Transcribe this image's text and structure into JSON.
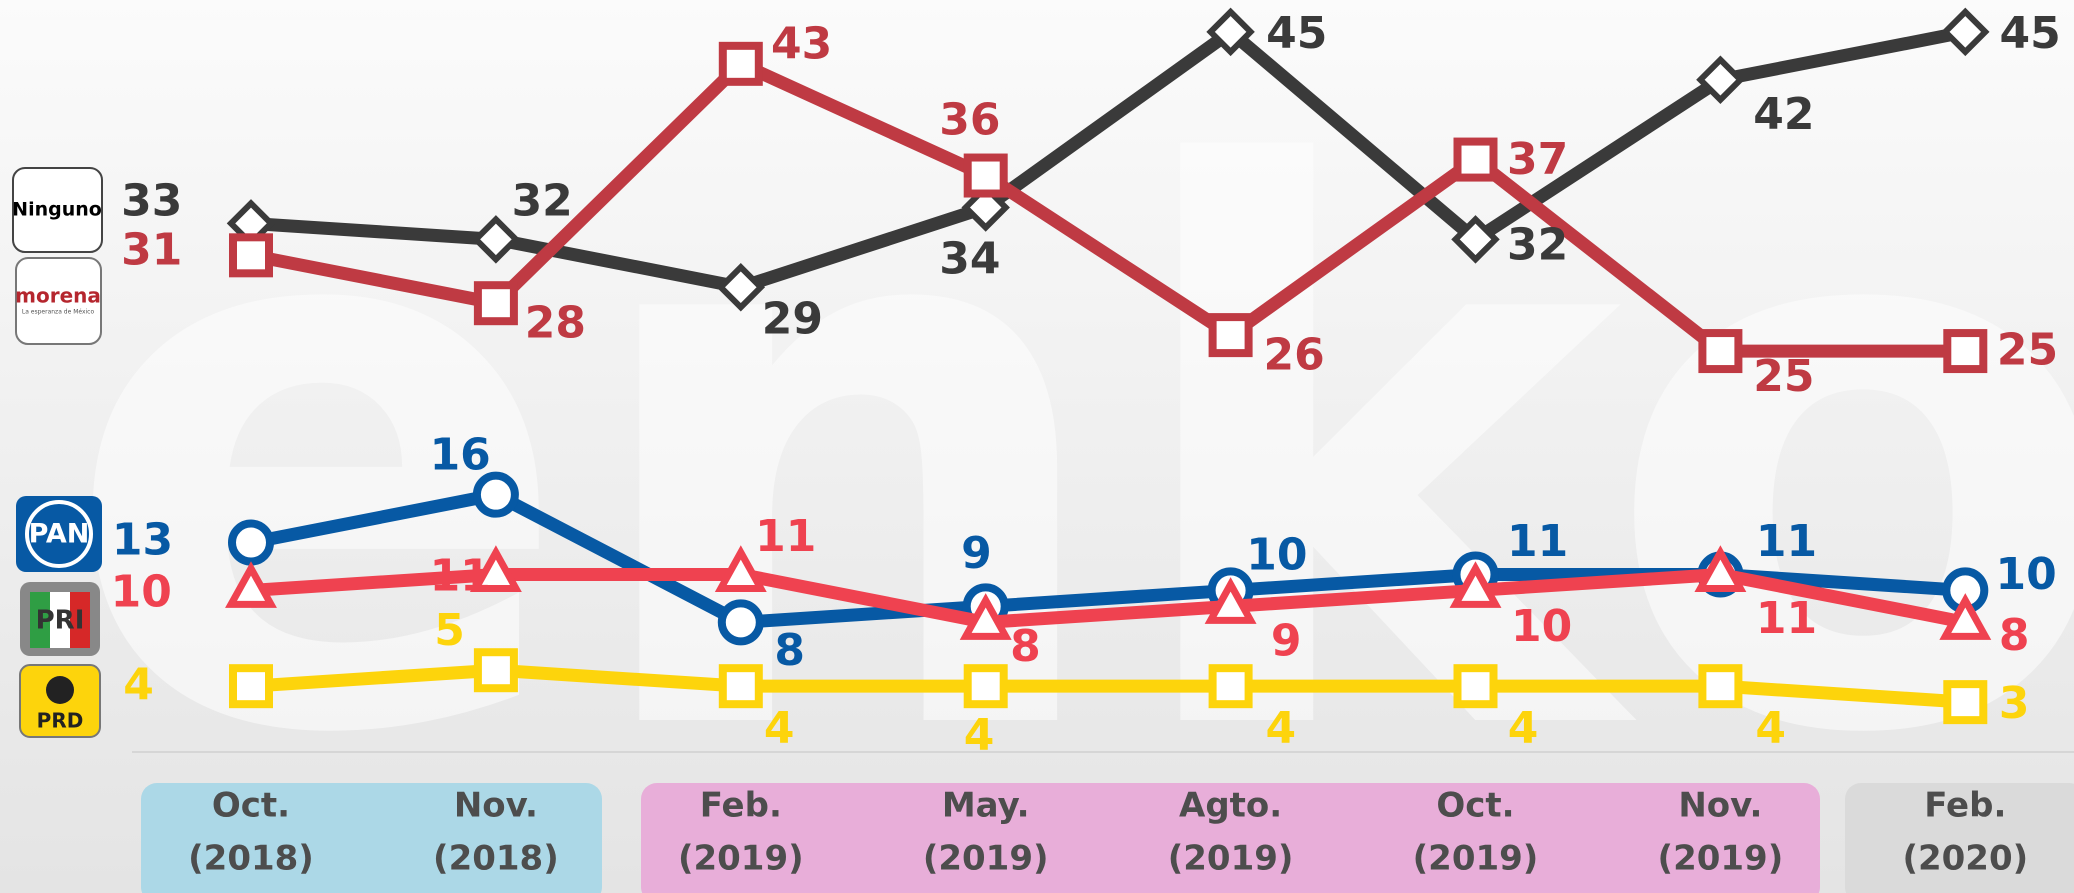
{
  "chart_data": {
    "type": "line",
    "watermark": "enkoll.",
    "legend_tagline": "La esperanza de México",
    "categories": [
      [
        "Oct.",
        "(2018)"
      ],
      [
        "Nov.",
        "(2018)"
      ],
      [
        "Feb.",
        "(2019)"
      ],
      [
        "May.",
        "(2019)"
      ],
      [
        "Agto.",
        "(2019)"
      ],
      [
        "Oct.",
        "(2019)"
      ],
      [
        "Nov.",
        "(2019)"
      ],
      [
        "Feb.",
        "(2020)"
      ]
    ],
    "ylim": [
      0,
      47
    ],
    "series": [
      {
        "name": "Ninguno",
        "color": "#3a3a3a",
        "marker": "diamond",
        "values": [
          33,
          32,
          29,
          34,
          45,
          32,
          42,
          45
        ]
      },
      {
        "name": "morena",
        "color": "#bf3a43",
        "marker": "square",
        "values": [
          31,
          28,
          43,
          36,
          26,
          37,
          25,
          25
        ]
      },
      {
        "name": "PAN",
        "color": "#0759a4",
        "marker": "circle",
        "values": [
          13,
          16,
          8,
          9,
          10,
          11,
          11,
          10
        ]
      },
      {
        "name": "PRI",
        "color": "#ef4250",
        "marker": "triangle",
        "values": [
          10,
          11,
          11,
          8,
          9,
          10,
          11,
          8
        ]
      },
      {
        "name": "PRD",
        "color": "#fdd40c",
        "marker": "square",
        "values": [
          4,
          5,
          4,
          4,
          4,
          4,
          4,
          3
        ]
      }
    ]
  }
}
